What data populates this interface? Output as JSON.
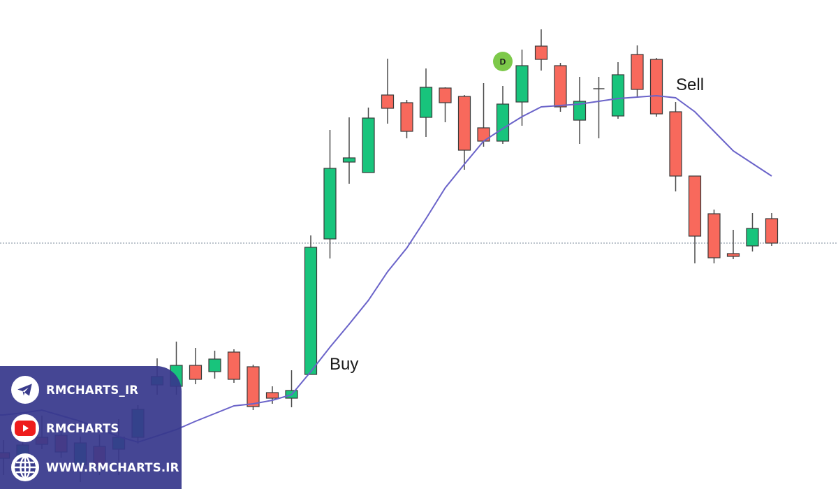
{
  "chart_data": {
    "type": "candlestick",
    "title": "",
    "xlabel": "",
    "ylabel": "",
    "grid": false,
    "colors": {
      "up": "#18c47c",
      "down": "#f8695c",
      "ma_line": "#6a63c9",
      "reference_line": "#7a8a9a",
      "marker": "#7dc94a"
    },
    "candles": [
      {
        "o": 52,
        "h": 70,
        "l": 20,
        "c": 44
      },
      {
        "o": 32,
        "h": 80,
        "l": 10,
        "c": 63
      },
      {
        "o": 74,
        "h": 105,
        "l": 57,
        "c": 64
      },
      {
        "o": 77,
        "h": 88,
        "l": 45,
        "c": 53
      },
      {
        "o": 35,
        "h": 75,
        "l": 10,
        "c": 66
      },
      {
        "o": 61,
        "h": 78,
        "l": 20,
        "c": 33
      },
      {
        "o": 57,
        "h": 100,
        "l": 20,
        "c": 74
      },
      {
        "o": 74,
        "h": 120,
        "l": 65,
        "c": 114
      },
      {
        "o": 149,
        "h": 187,
        "l": 135,
        "c": 161
      },
      {
        "o": 147,
        "h": 211,
        "l": 135,
        "c": 177
      },
      {
        "o": 177,
        "h": 202,
        "l": 150,
        "c": 157
      },
      {
        "o": 168,
        "h": 198,
        "l": 158,
        "c": 186
      },
      {
        "o": 196,
        "h": 200,
        "l": 152,
        "c": 157
      },
      {
        "o": 175,
        "h": 178,
        "l": 113,
        "c": 118
      },
      {
        "o": 138,
        "h": 147,
        "l": 122,
        "c": 130
      },
      {
        "o": 130,
        "h": 170,
        "l": 117,
        "c": 141
      },
      {
        "o": 164,
        "h": 363,
        "l": 164,
        "c": 346
      },
      {
        "o": 358,
        "h": 514,
        "l": 330,
        "c": 459
      },
      {
        "o": 468,
        "h": 532,
        "l": 437,
        "c": 474
      },
      {
        "o": 453,
        "h": 546,
        "l": 453,
        "c": 531
      },
      {
        "o": 564,
        "h": 616,
        "l": 523,
        "c": 545
      },
      {
        "o": 553,
        "h": 557,
        "l": 502,
        "c": 512
      },
      {
        "o": 532,
        "h": 602,
        "l": 504,
        "c": 575
      },
      {
        "o": 574,
        "h": 575,
        "l": 525,
        "c": 553
      },
      {
        "o": 562,
        "h": 564,
        "l": 457,
        "c": 485
      },
      {
        "o": 517,
        "h": 581,
        "l": 490,
        "c": 498
      },
      {
        "o": 498,
        "h": 577,
        "l": 494,
        "c": 551
      },
      {
        "o": 554,
        "h": 629,
        "l": 520,
        "c": 606
      },
      {
        "o": 634,
        "h": 658,
        "l": 599,
        "c": 615
      },
      {
        "o": 606,
        "h": 610,
        "l": 540,
        "c": 547
      },
      {
        "o": 528,
        "h": 590,
        "l": 494,
        "c": 555
      },
      {
        "o": 573,
        "h": 590,
        "l": 502,
        "c": 573
      },
      {
        "o": 534,
        "h": 611,
        "l": 530,
        "c": 593
      },
      {
        "o": 622,
        "h": 635,
        "l": 562,
        "c": 572
      },
      {
        "o": 615,
        "h": 617,
        "l": 533,
        "c": 537
      },
      {
        "o": 540,
        "h": 554,
        "l": 426,
        "c": 448
      },
      {
        "o": 448,
        "h": 448,
        "l": 323,
        "c": 362
      },
      {
        "o": 394,
        "h": 400,
        "l": 323,
        "c": 331
      },
      {
        "o": 337,
        "h": 371,
        "l": 329,
        "c": 333
      },
      {
        "o": 348,
        "h": 395,
        "l": 340,
        "c": 373
      },
      {
        "o": 387,
        "h": 395,
        "l": 348,
        "c": 352
      }
    ],
    "moving_average": [
      106,
      109,
      113,
      105,
      97,
      86,
      75,
      67,
      76,
      85,
      97,
      108,
      119,
      122,
      127,
      135,
      168,
      203,
      236,
      270,
      311,
      345,
      387,
      431,
      465,
      498,
      516,
      533,
      547,
      549,
      551,
      555,
      559,
      561,
      563,
      560,
      540,
      512,
      484,
      466,
      448
    ],
    "reference_level": 352,
    "annotations": [
      {
        "text": "Buy",
        "candle_index": 17
      },
      {
        "text": "Sell",
        "candle_index": 35
      },
      {
        "text": "D",
        "candle_index": 26,
        "style": "circle-marker"
      }
    ]
  },
  "watermark": {
    "items": [
      {
        "icon": "telegram-icon",
        "label": "RMCHARTS_IR"
      },
      {
        "icon": "youtube-icon",
        "label": "RMCHARTS"
      },
      {
        "icon": "globe-icon",
        "label": "WWW.RMCHARTS.IR"
      }
    ]
  }
}
